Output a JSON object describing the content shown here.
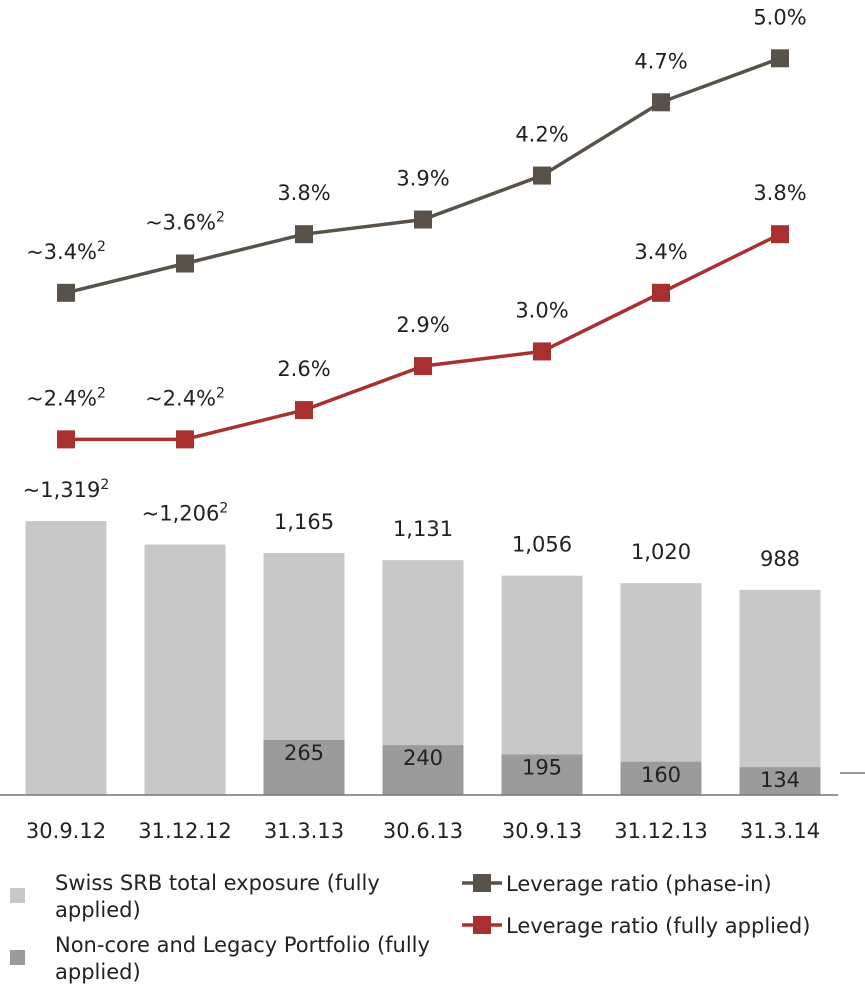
{
  "chart_data": {
    "type": "bar",
    "categories": [
      "30.9.12",
      "31.12.12",
      "31.3.13",
      "30.6.13",
      "30.9.13",
      "31.12.13",
      "31.3.14"
    ],
    "ylim": [
      0,
      1500
    ],
    "y2lim": [
      2.0,
      5.2
    ],
    "series": [
      {
        "name": "Swiss SRB total exposure (fully applied)",
        "type": "bar",
        "color": "#c8c8c8",
        "values": [
          1319,
          1206,
          1165,
          1131,
          1056,
          1020,
          988
        ],
        "value_labels": [
          "~1,319",
          "~1,206",
          "1,165",
          "1,131",
          "1,056",
          "1,020",
          "988"
        ],
        "value_label_notes": [
          "2",
          "2",
          null,
          null,
          null,
          null,
          null
        ]
      },
      {
        "name": "Non-core and Legacy Portfolio (fully applied)",
        "type": "bar",
        "color": "#9b9b9b",
        "values": [
          null,
          null,
          265,
          240,
          195,
          160,
          134
        ]
      },
      {
        "name": "Leverage ratio (phase-in)",
        "type": "line",
        "axis": "y2",
        "color": "#59524a",
        "values": [
          3.4,
          3.6,
          3.8,
          3.9,
          4.2,
          4.7,
          5.0
        ],
        "value_labels": [
          "~3.4%",
          "~3.6%",
          "3.8%",
          "3.9%",
          "4.2%",
          "4.7%",
          "5.0%"
        ],
        "value_label_notes": [
          "2",
          "2",
          null,
          null,
          null,
          null,
          null
        ]
      },
      {
        "name": "Leverage ratio (fully applied)",
        "type": "line",
        "axis": "y2",
        "color": "#a8312f",
        "values": [
          2.4,
          2.4,
          2.6,
          2.9,
          3.0,
          3.4,
          3.8
        ],
        "value_labels": [
          "~2.4%",
          "~2.4%",
          "2.6%",
          "2.9%",
          "3.0%",
          "3.4%",
          "3.8%"
        ],
        "value_label_notes": [
          "2",
          "2",
          null,
          null,
          null,
          null,
          null
        ]
      }
    ]
  }
}
